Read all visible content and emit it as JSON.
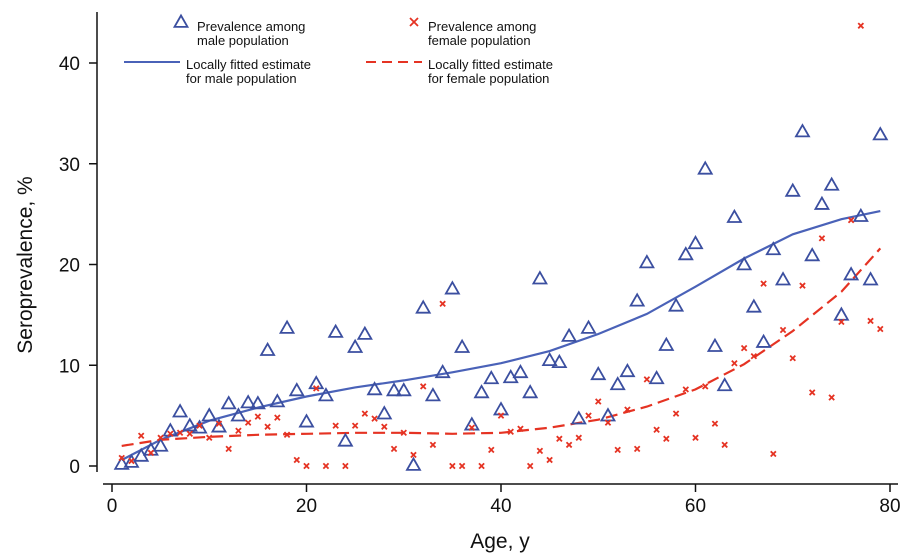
{
  "chart_data": {
    "type": "scatter",
    "xlabel": "Age, y",
    "ylabel": "Seroprevalence, %",
    "xlim": [
      0,
      80
    ],
    "ylim": [
      0,
      45
    ],
    "x_ticks": [
      0,
      20,
      40,
      60,
      80
    ],
    "y_ticks": [
      0,
      10,
      20,
      30,
      40
    ],
    "legend_placement": "top",
    "legend": [
      {
        "key": "male_points",
        "line1": "Prevalence among",
        "line2": "male population",
        "marker": "triangle",
        "color": "#3b4fa0"
      },
      {
        "key": "female_points",
        "line1": "Prevalence among",
        "line2": "female population",
        "marker": "x",
        "color": "#e53323"
      },
      {
        "key": "male_curve",
        "line1": "Locally fitted estimate",
        "line2": "for male population",
        "marker": "solid-line",
        "color": "#4a62b8"
      },
      {
        "key": "female_curve",
        "line1": "Locally fitted estimate",
        "line2": "for female population",
        "marker": "dashed-line",
        "color": "#e53323"
      }
    ],
    "series": [
      {
        "key": "male_points",
        "marker": "triangle",
        "color": "#3b4fa0",
        "points": [
          [
            1,
            0.2
          ],
          [
            2,
            0.4
          ],
          [
            3,
            1.0
          ],
          [
            4,
            1.6
          ],
          [
            5,
            2.0
          ],
          [
            6,
            3.5
          ],
          [
            7,
            5.4
          ],
          [
            8,
            4.0
          ],
          [
            9,
            3.8
          ],
          [
            10,
            5.0
          ],
          [
            11,
            3.9
          ],
          [
            12,
            6.2
          ],
          [
            13,
            5.0
          ],
          [
            14,
            6.3
          ],
          [
            15,
            6.2
          ],
          [
            16,
            11.5
          ],
          [
            17,
            6.4
          ],
          [
            18,
            13.7
          ],
          [
            19,
            7.5
          ],
          [
            20,
            4.4
          ],
          [
            21,
            8.2
          ],
          [
            22,
            7.0
          ],
          [
            23,
            13.3
          ],
          [
            24,
            2.5
          ],
          [
            25,
            11.8
          ],
          [
            26,
            13.1
          ],
          [
            27,
            7.6
          ],
          [
            28,
            5.2
          ],
          [
            29,
            7.5
          ],
          [
            30,
            7.5
          ],
          [
            31,
            0.1
          ],
          [
            32,
            15.7
          ],
          [
            33,
            7.0
          ],
          [
            34,
            9.3
          ],
          [
            35,
            17.6
          ],
          [
            36,
            11.8
          ],
          [
            37,
            4.1
          ],
          [
            38,
            7.3
          ],
          [
            39,
            8.7
          ],
          [
            40,
            5.6
          ],
          [
            41,
            8.8
          ],
          [
            42,
            9.3
          ],
          [
            43,
            7.3
          ],
          [
            44,
            18.6
          ],
          [
            45,
            10.5
          ],
          [
            46,
            10.3
          ],
          [
            47,
            12.9
          ],
          [
            48,
            4.7
          ],
          [
            49,
            13.7
          ],
          [
            50,
            9.1
          ],
          [
            51,
            5.0
          ],
          [
            52,
            8.1
          ],
          [
            53,
            9.4
          ],
          [
            54,
            16.4
          ],
          [
            55,
            20.2
          ],
          [
            56,
            8.7
          ],
          [
            57,
            12.0
          ],
          [
            58,
            15.9
          ],
          [
            59,
            21.0
          ],
          [
            60,
            22.1
          ],
          [
            61,
            29.5
          ],
          [
            62,
            11.9
          ],
          [
            63,
            8.0
          ],
          [
            64,
            24.7
          ],
          [
            65,
            20.0
          ],
          [
            66,
            15.8
          ],
          [
            67,
            12.3
          ],
          [
            68,
            21.5
          ],
          [
            69,
            18.5
          ],
          [
            70,
            27.3
          ],
          [
            71,
            33.2
          ],
          [
            72,
            20.9
          ],
          [
            73,
            26.0
          ],
          [
            74,
            27.9
          ],
          [
            75,
            15.0
          ],
          [
            76,
            19.0
          ],
          [
            77,
            24.8
          ],
          [
            78,
            18.5
          ],
          [
            79,
            32.9
          ]
        ]
      },
      {
        "key": "female_points",
        "marker": "x",
        "color": "#e53323",
        "points": [
          [
            1,
            0.8
          ],
          [
            2,
            0.5
          ],
          [
            3,
            3.0
          ],
          [
            4,
            1.3
          ],
          [
            5,
            2.8
          ],
          [
            6,
            3.2
          ],
          [
            7,
            3.3
          ],
          [
            8,
            3.2
          ],
          [
            9,
            4.0
          ],
          [
            10,
            2.8
          ],
          [
            11,
            4.2
          ],
          [
            12,
            1.7
          ],
          [
            13,
            3.5
          ],
          [
            14,
            4.3
          ],
          [
            15,
            4.9
          ],
          [
            16,
            3.9
          ],
          [
            17,
            4.8
          ],
          [
            18,
            3.1
          ],
          [
            19,
            0.6
          ],
          [
            20,
            0.0
          ],
          [
            21,
            7.7
          ],
          [
            22,
            0.0
          ],
          [
            23,
            4.0
          ],
          [
            24,
            0.0
          ],
          [
            25,
            4.0
          ],
          [
            26,
            5.2
          ],
          [
            27,
            4.7
          ],
          [
            28,
            3.9
          ],
          [
            29,
            1.7
          ],
          [
            30,
            3.3
          ],
          [
            31,
            1.1
          ],
          [
            32,
            7.9
          ],
          [
            33,
            2.1
          ],
          [
            34,
            16.1
          ],
          [
            35,
            0.0
          ],
          [
            36,
            0.0
          ],
          [
            37,
            3.8
          ],
          [
            38,
            0.0
          ],
          [
            39,
            1.6
          ],
          [
            40,
            5.0
          ],
          [
            41,
            3.4
          ],
          [
            42,
            3.7
          ],
          [
            43,
            0.0
          ],
          [
            44,
            1.5
          ],
          [
            45,
            0.6
          ],
          [
            46,
            2.7
          ],
          [
            47,
            2.1
          ],
          [
            48,
            2.8
          ],
          [
            49,
            5.0
          ],
          [
            50,
            6.4
          ],
          [
            51,
            4.3
          ],
          [
            52,
            1.6
          ],
          [
            53,
            5.6
          ],
          [
            54,
            1.7
          ],
          [
            55,
            8.6
          ],
          [
            56,
            3.6
          ],
          [
            57,
            2.7
          ],
          [
            58,
            5.2
          ],
          [
            59,
            7.6
          ],
          [
            60,
            2.8
          ],
          [
            61,
            7.9
          ],
          [
            62,
            4.2
          ],
          [
            63,
            2.1
          ],
          [
            64,
            10.2
          ],
          [
            65,
            11.7
          ],
          [
            66,
            10.9
          ],
          [
            67,
            18.1
          ],
          [
            68,
            1.2
          ],
          [
            69,
            13.5
          ],
          [
            70,
            10.7
          ],
          [
            71,
            17.9
          ],
          [
            72,
            7.3
          ],
          [
            73,
            22.6
          ],
          [
            74,
            6.8
          ],
          [
            75,
            14.3
          ],
          [
            76,
            24.4
          ],
          [
            77,
            43.7
          ],
          [
            78,
            14.4
          ],
          [
            79,
            13.6
          ]
        ]
      },
      {
        "key": "male_curve",
        "type": "line",
        "style": "solid",
        "color": "#4a62b8",
        "points": [
          [
            1,
            0.6
          ],
          [
            5,
            2.6
          ],
          [
            10,
            4.5
          ],
          [
            15,
            5.8
          ],
          [
            20,
            6.9
          ],
          [
            25,
            7.8
          ],
          [
            30,
            8.5
          ],
          [
            35,
            9.3
          ],
          [
            40,
            10.2
          ],
          [
            45,
            11.4
          ],
          [
            50,
            13.1
          ],
          [
            55,
            15.1
          ],
          [
            60,
            17.8
          ],
          [
            65,
            20.6
          ],
          [
            70,
            23.0
          ],
          [
            75,
            24.5
          ],
          [
            79,
            25.3
          ]
        ]
      },
      {
        "key": "female_curve",
        "type": "line",
        "style": "dashed",
        "color": "#e53323",
        "points": [
          [
            1,
            2.0
          ],
          [
            5,
            2.6
          ],
          [
            10,
            2.9
          ],
          [
            15,
            3.1
          ],
          [
            20,
            3.2
          ],
          [
            25,
            3.3
          ],
          [
            30,
            3.3
          ],
          [
            35,
            3.2
          ],
          [
            40,
            3.3
          ],
          [
            45,
            3.8
          ],
          [
            50,
            4.6
          ],
          [
            55,
            5.9
          ],
          [
            60,
            7.6
          ],
          [
            65,
            10.1
          ],
          [
            70,
            13.4
          ],
          [
            75,
            17.3
          ],
          [
            79,
            21.6
          ]
        ]
      }
    ]
  }
}
